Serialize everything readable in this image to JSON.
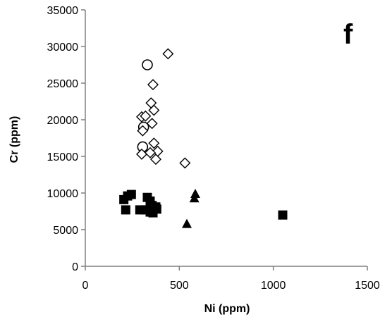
{
  "chart_data": {
    "type": "scatter",
    "title": "",
    "panel_label": "f",
    "xlabel": "Ni (ppm)",
    "ylabel": "Cr (ppm)",
    "xlim": [
      0,
      1500
    ],
    "ylim": [
      0,
      35000
    ],
    "x_ticks": [
      0,
      500,
      1000,
      1500
    ],
    "y_ticks": [
      0,
      5000,
      10000,
      15000,
      20000,
      25000,
      30000,
      35000
    ],
    "grid": false,
    "legend": "none",
    "series": [
      {
        "marker": "open-circle",
        "color": "#000000",
        "points": [
          {
            "x": 330,
            "y": 27500
          },
          {
            "x": 310,
            "y": 19000
          },
          {
            "x": 305,
            "y": 16300
          }
        ]
      },
      {
        "marker": "open-diamond",
        "color": "#000000",
        "points": [
          {
            "x": 440,
            "y": 29000
          },
          {
            "x": 360,
            "y": 24800
          },
          {
            "x": 350,
            "y": 22300
          },
          {
            "x": 365,
            "y": 21300
          },
          {
            "x": 300,
            "y": 20400
          },
          {
            "x": 320,
            "y": 20500
          },
          {
            "x": 355,
            "y": 19500
          },
          {
            "x": 305,
            "y": 18500
          },
          {
            "x": 365,
            "y": 16800
          },
          {
            "x": 385,
            "y": 15700
          },
          {
            "x": 300,
            "y": 15300
          },
          {
            "x": 345,
            "y": 15500
          },
          {
            "x": 375,
            "y": 14600
          },
          {
            "x": 530,
            "y": 14100
          }
        ]
      },
      {
        "marker": "filled-square",
        "color": "#000000",
        "points": [
          {
            "x": 205,
            "y": 9100
          },
          {
            "x": 225,
            "y": 9600
          },
          {
            "x": 245,
            "y": 9800
          },
          {
            "x": 215,
            "y": 7700
          },
          {
            "x": 290,
            "y": 7700
          },
          {
            "x": 320,
            "y": 7700
          },
          {
            "x": 330,
            "y": 9400
          },
          {
            "x": 345,
            "y": 8900
          },
          {
            "x": 355,
            "y": 8300
          },
          {
            "x": 345,
            "y": 7400
          },
          {
            "x": 360,
            "y": 7300
          },
          {
            "x": 380,
            "y": 7800
          },
          {
            "x": 375,
            "y": 8100
          },
          {
            "x": 1050,
            "y": 7000
          }
        ]
      },
      {
        "marker": "filled-triangle",
        "color": "#000000",
        "points": [
          {
            "x": 585,
            "y": 9900
          },
          {
            "x": 580,
            "y": 9300
          },
          {
            "x": 540,
            "y": 5800
          }
        ]
      }
    ]
  }
}
